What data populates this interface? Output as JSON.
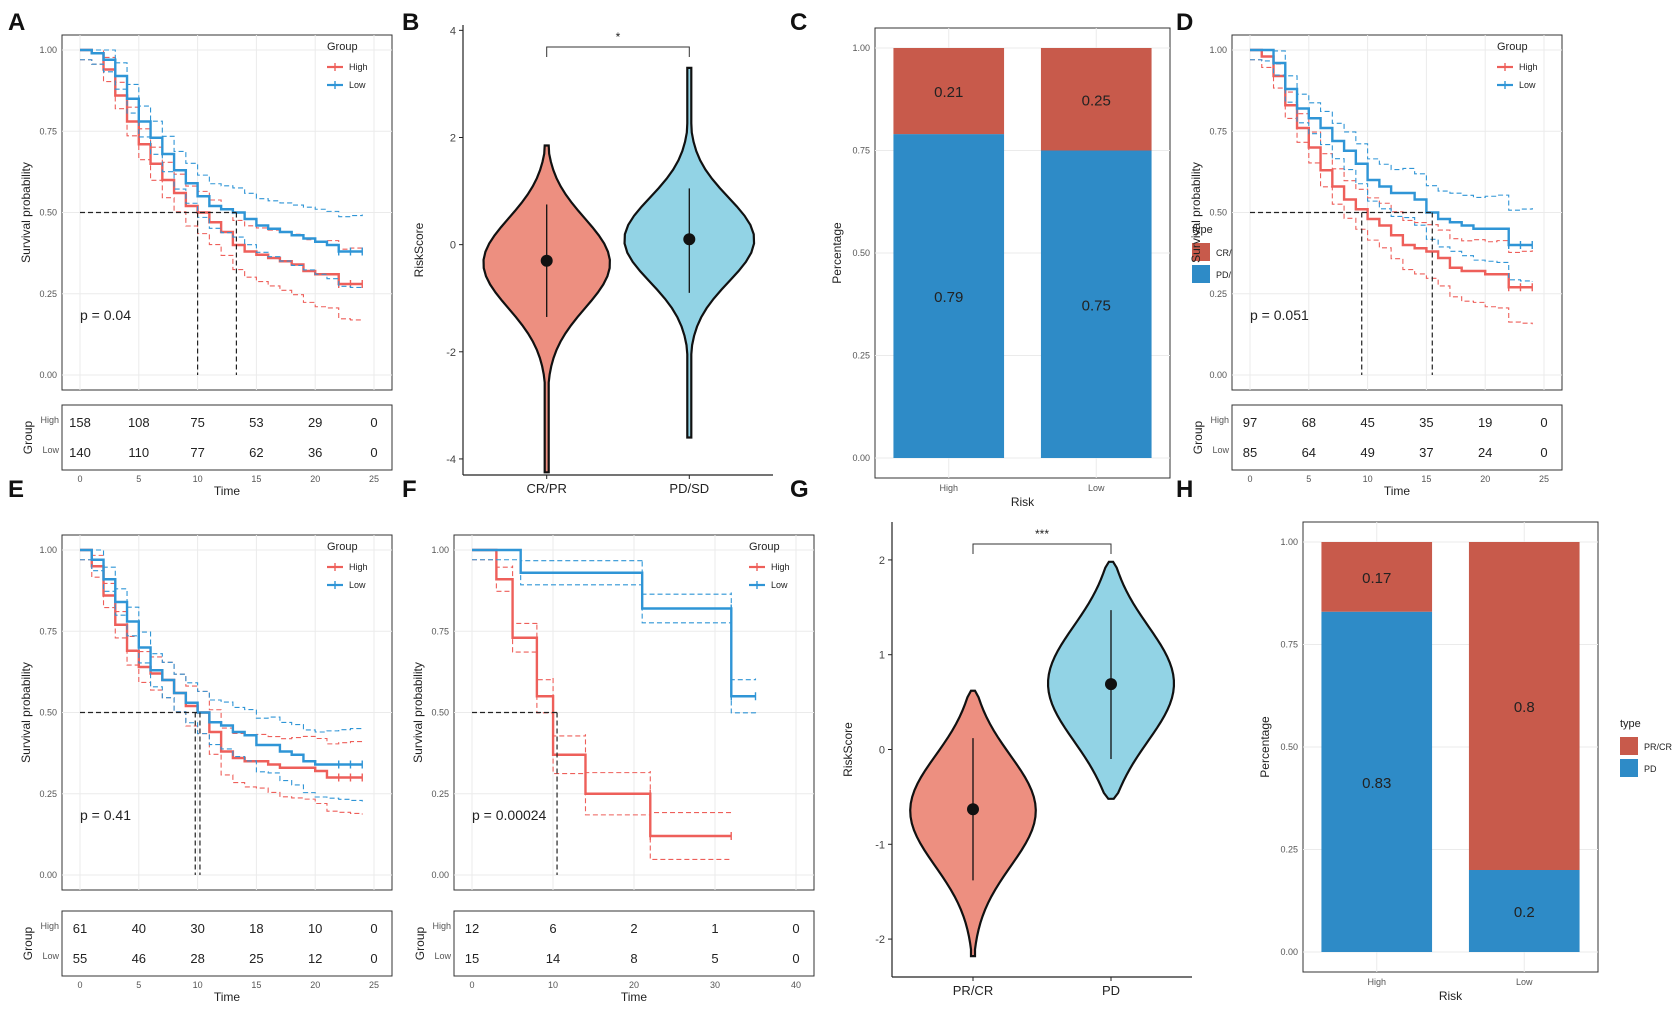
{
  "figure": {
    "colors": {
      "high": "#ee5f5a",
      "low": "#2f95d6",
      "crpr": "#c85a4b",
      "pdsd": "#2e8bc7",
      "violin_red": "#ed8f80",
      "violin_blue": "#92d3e5",
      "grid": "#ebebeb",
      "axis": "#333333"
    }
  },
  "chart_data": [
    {
      "panel": "A",
      "type": "line",
      "subtype": "kaplan-meier",
      "ylabel": "Survival probability",
      "xlabel": "Time",
      "xlim": [
        0,
        25
      ],
      "ylim": [
        0,
        1
      ],
      "x_ticks": [
        "0",
        "5",
        "10",
        "15",
        "20",
        "25"
      ],
      "y_ticks": [
        "0.00",
        "0.25",
        "0.50",
        "0.75",
        "1.00"
      ],
      "legend_title": "Group",
      "legend": [
        "High",
        "Low"
      ],
      "pvalue": "p = 0.04",
      "median": [
        10,
        13.3
      ],
      "series": [
        {
          "name": "High",
          "x": [
            0,
            1,
            2,
            3,
            4,
            5,
            6,
            7,
            8,
            9,
            10,
            11,
            12,
            13,
            14,
            15,
            16,
            17,
            18,
            19,
            20,
            21,
            22,
            23,
            24
          ],
          "values": [
            1.0,
            0.99,
            0.94,
            0.86,
            0.78,
            0.71,
            0.65,
            0.6,
            0.56,
            0.52,
            0.5,
            0.47,
            0.44,
            0.4,
            0.38,
            0.37,
            0.36,
            0.35,
            0.34,
            0.32,
            0.31,
            0.31,
            0.28,
            0.28,
            0.28
          ]
        },
        {
          "name": "Low",
          "x": [
            0,
            1,
            2,
            3,
            4,
            5,
            6,
            7,
            8,
            9,
            10,
            11,
            12,
            13,
            14,
            15,
            16,
            17,
            18,
            19,
            20,
            21,
            22,
            23,
            24
          ],
          "values": [
            1.0,
            0.99,
            0.97,
            0.92,
            0.85,
            0.78,
            0.73,
            0.68,
            0.63,
            0.59,
            0.55,
            0.52,
            0.51,
            0.5,
            0.48,
            0.46,
            0.45,
            0.44,
            0.43,
            0.42,
            0.41,
            0.4,
            0.38,
            0.38,
            0.38
          ]
        }
      ],
      "risk_table": {
        "label": "Group",
        "rows": [
          {
            "name": "High",
            "counts": [
              "158",
              "108",
              "75",
              "53",
              "29",
              "0"
            ]
          },
          {
            "name": "Low",
            "counts": [
              "140",
              "110",
              "77",
              "62",
              "36",
              "0"
            ]
          }
        ]
      }
    },
    {
      "panel": "B",
      "type": "violin",
      "ylabel": "RiskScore",
      "categories": [
        "CR/PR",
        "PD/SD"
      ],
      "ylim": [
        -4.3,
        4.1
      ],
      "y_ticks": [
        "-4",
        "-2",
        "0",
        "2",
        "4"
      ],
      "significance": "*",
      "groups": [
        {
          "name": "CR/PR",
          "median": -0.3,
          "q_low": -1.35,
          "q_high": 0.75,
          "min": -4.25,
          "max": 1.85
        },
        {
          "name": "PD/SD",
          "median": 0.1,
          "q_low": -0.9,
          "q_high": 1.05,
          "min": -3.6,
          "max": 3.3
        }
      ]
    },
    {
      "panel": "C",
      "type": "bar",
      "subtype": "stacked",
      "xlabel": "Risk",
      "ylabel": "Percentage",
      "categories": [
        "High",
        "Low"
      ],
      "y_ticks": [
        "0.00",
        "0.25",
        "0.50",
        "0.75",
        "1.00"
      ],
      "legend_title": "type",
      "series": [
        {
          "name": "CR/PR",
          "values": [
            0.21,
            0.25
          ],
          "labels": [
            "0.21",
            "0.25"
          ]
        },
        {
          "name": "PD/SD",
          "values": [
            0.79,
            0.75
          ],
          "labels": [
            "0.79",
            "0.75"
          ]
        }
      ]
    },
    {
      "panel": "D",
      "type": "line",
      "subtype": "kaplan-meier",
      "ylabel": "Survival probability",
      "xlabel": "Time",
      "xlim": [
        0,
        25
      ],
      "ylim": [
        0,
        1
      ],
      "x_ticks": [
        "0",
        "5",
        "10",
        "15",
        "20",
        "25"
      ],
      "y_ticks": [
        "0.00",
        "0.25",
        "0.50",
        "0.75",
        "1.00"
      ],
      "legend_title": "Group",
      "legend": [
        "High",
        "Low"
      ],
      "pvalue": "p = 0.051",
      "median": [
        9.5,
        15.5
      ],
      "series": [
        {
          "name": "High",
          "x": [
            0,
            1,
            2,
            3,
            4,
            5,
            6,
            7,
            8,
            9,
            10,
            11,
            12,
            13,
            14,
            15,
            16,
            17,
            18,
            19,
            20,
            21,
            22,
            23,
            24
          ],
          "values": [
            1.0,
            0.98,
            0.92,
            0.83,
            0.76,
            0.7,
            0.63,
            0.58,
            0.54,
            0.51,
            0.48,
            0.46,
            0.43,
            0.4,
            0.39,
            0.38,
            0.36,
            0.33,
            0.32,
            0.32,
            0.31,
            0.31,
            0.27,
            0.27,
            0.27
          ]
        },
        {
          "name": "Low",
          "x": [
            0,
            1,
            2,
            3,
            4,
            5,
            6,
            7,
            8,
            9,
            10,
            11,
            12,
            13,
            14,
            15,
            16,
            17,
            18,
            19,
            20,
            21,
            22,
            23,
            24
          ],
          "values": [
            1.0,
            1.0,
            0.96,
            0.88,
            0.82,
            0.79,
            0.76,
            0.72,
            0.69,
            0.65,
            0.6,
            0.58,
            0.56,
            0.56,
            0.54,
            0.5,
            0.48,
            0.47,
            0.46,
            0.45,
            0.45,
            0.45,
            0.4,
            0.4,
            0.4
          ]
        }
      ],
      "risk_table": {
        "label": "Group",
        "rows": [
          {
            "name": "High",
            "counts": [
              "97",
              "68",
              "45",
              "35",
              "19",
              "0"
            ]
          },
          {
            "name": "Low",
            "counts": [
              "85",
              "64",
              "49",
              "37",
              "24",
              "0"
            ]
          }
        ]
      }
    },
    {
      "panel": "E",
      "type": "line",
      "subtype": "kaplan-meier",
      "ylabel": "Survival probability",
      "xlabel": "Time",
      "xlim": [
        0,
        25
      ],
      "ylim": [
        0,
        1
      ],
      "x_ticks": [
        "0",
        "5",
        "10",
        "15",
        "20",
        "25"
      ],
      "y_ticks": [
        "0.00",
        "0.25",
        "0.50",
        "0.75",
        "1.00"
      ],
      "legend_title": "Group",
      "legend": [
        "High",
        "Low"
      ],
      "pvalue": "p = 0.41",
      "median": [
        9.8,
        10.2
      ],
      "series": [
        {
          "name": "High",
          "x": [
            0,
            1,
            2,
            3,
            4,
            5,
            6,
            7,
            8,
            9,
            10,
            11,
            12,
            13,
            14,
            15,
            16,
            17,
            18,
            19,
            20,
            21,
            22,
            23,
            24
          ],
          "values": [
            1.0,
            0.95,
            0.86,
            0.77,
            0.69,
            0.64,
            0.62,
            0.6,
            0.56,
            0.52,
            0.5,
            0.44,
            0.38,
            0.36,
            0.35,
            0.35,
            0.34,
            0.33,
            0.33,
            0.33,
            0.32,
            0.3,
            0.3,
            0.3,
            0.3
          ]
        },
        {
          "name": "Low",
          "x": [
            0,
            1,
            2,
            3,
            4,
            5,
            6,
            7,
            8,
            9,
            10,
            11,
            12,
            13,
            14,
            15,
            16,
            17,
            18,
            19,
            20,
            21,
            22,
            23,
            24
          ],
          "values": [
            1.0,
            0.97,
            0.91,
            0.84,
            0.78,
            0.7,
            0.63,
            0.6,
            0.56,
            0.53,
            0.5,
            0.47,
            0.46,
            0.44,
            0.43,
            0.4,
            0.4,
            0.38,
            0.37,
            0.35,
            0.34,
            0.34,
            0.34,
            0.34,
            0.34
          ]
        }
      ],
      "risk_table": {
        "label": "Group",
        "rows": [
          {
            "name": "High",
            "counts": [
              "61",
              "40",
              "30",
              "18",
              "10",
              "0"
            ]
          },
          {
            "name": "Low",
            "counts": [
              "55",
              "46",
              "28",
              "25",
              "12",
              "0"
            ]
          }
        ]
      }
    },
    {
      "panel": "F",
      "type": "line",
      "subtype": "kaplan-meier",
      "ylabel": "Survival probability",
      "xlabel": "Time",
      "xlim": [
        0,
        40
      ],
      "ylim": [
        0,
        1
      ],
      "x_ticks": [
        "0",
        "10",
        "20",
        "30",
        "40"
      ],
      "y_ticks": [
        "0.00",
        "0.25",
        "0.50",
        "0.75",
        "1.00"
      ],
      "legend_title": "Group",
      "legend": [
        "High",
        "Low"
      ],
      "pvalue": "p = 0.00024",
      "median": [
        10.5
      ],
      "series": [
        {
          "name": "High",
          "x": [
            0,
            3,
            3.01,
            5,
            5.01,
            8,
            8.01,
            10,
            10.01,
            14,
            14.01,
            22,
            22.01,
            32
          ],
          "values": [
            1.0,
            1.0,
            0.91,
            0.91,
            0.73,
            0.73,
            0.55,
            0.55,
            0.37,
            0.37,
            0.25,
            0.25,
            0.12,
            0.12
          ]
        },
        {
          "name": "Low",
          "x": [
            0,
            6,
            6.01,
            21,
            21.01,
            32,
            32.01,
            35
          ],
          "values": [
            1.0,
            1.0,
            0.93,
            0.93,
            0.82,
            0.82,
            0.55,
            0.55
          ]
        }
      ],
      "risk_table": {
        "label": "Group",
        "rows": [
          {
            "name": "High",
            "counts": [
              "12",
              "6",
              "2",
              "1",
              "0"
            ]
          },
          {
            "name": "Low",
            "counts": [
              "15",
              "14",
              "8",
              "5",
              "0"
            ]
          }
        ]
      }
    },
    {
      "panel": "G",
      "type": "violin",
      "ylabel": "RiskScore",
      "categories": [
        "PR/CR",
        "PD"
      ],
      "ylim": [
        -2.4,
        2.4
      ],
      "y_ticks": [
        "-2",
        "-1",
        "0",
        "1",
        "2"
      ],
      "significance": "***",
      "groups": [
        {
          "name": "PR/CR",
          "median": -0.63,
          "q_low": -1.38,
          "q_high": 0.12,
          "min": -2.18,
          "max": 0.62
        },
        {
          "name": "PD",
          "median": 0.69,
          "q_low": -0.1,
          "q_high": 1.47,
          "min": -0.52,
          "max": 1.98
        }
      ]
    },
    {
      "panel": "H",
      "type": "bar",
      "subtype": "stacked",
      "xlabel": "Risk",
      "ylabel": "Percentage",
      "categories": [
        "High",
        "Low"
      ],
      "y_ticks": [
        "0.00",
        "0.25",
        "0.50",
        "0.75",
        "1.00"
      ],
      "legend_title": "type",
      "series": [
        {
          "name": "PR/CR",
          "values": [
            0.17,
            0.8
          ],
          "labels": [
            "0.17",
            "0.8"
          ]
        },
        {
          "name": "PD",
          "values": [
            0.83,
            0.2
          ],
          "labels": [
            "0.83",
            "0.2"
          ]
        }
      ]
    }
  ]
}
